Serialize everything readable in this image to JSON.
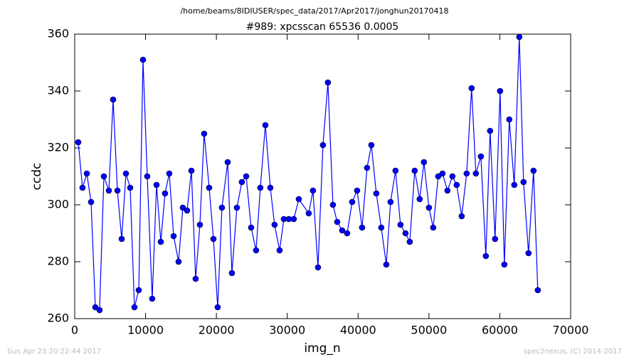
{
  "chart_data": {
    "type": "line",
    "suptitle": "/home/beams/8IDIUSER/spec_data/2017/Apr2017/jonghun20170418",
    "title": "#989: xpcsscan 65536 0.0005",
    "x_label": "img_n",
    "y_label": "ccdc",
    "footer_left": "Sun Apr 23 20:22:44 2017",
    "footer_right": "spec2nexus, (C) 2014-2017",
    "xlim": [
      0,
      70000
    ],
    "xticks": [
      0,
      10000,
      20000,
      30000,
      40000,
      50000,
      60000,
      70000
    ],
    "ylim": [
      260,
      360
    ],
    "yticks": [
      260,
      280,
      300,
      320,
      340,
      360
    ],
    "grid": false,
    "x": [
      500,
      1100,
      1710,
      2310,
      2910,
      3510,
      4120,
      4820,
      5420,
      6030,
      6630,
      7230,
      7830,
      8430,
      9040,
      9640,
      10240,
      10940,
      11550,
      12150,
      12750,
      13350,
      13960,
      14660,
      15260,
      15860,
      16470,
      17070,
      17670,
      18270,
      18980,
      19580,
      20180,
      20780,
      21590,
      22190,
      22890,
      23590,
      24200,
      24900,
      25600,
      26200,
      26910,
      27610,
      28210,
      28920,
      29520,
      30220,
      30920,
      31630,
      33030,
      33630,
      34340,
      35040,
      35740,
      36450,
      37050,
      37750,
      38450,
      39160,
      39860,
      40560,
      41260,
      41870,
      42570,
      43270,
      43980,
      44580,
      45280,
      45980,
      46690,
      47290,
      47990,
      48690,
      49290,
      50000,
      50600,
      51310,
      51910,
      52610,
      53310,
      53910,
      54620,
      55320,
      56020,
      56620,
      57330,
      58030,
      58630,
      59330,
      60040,
      60640,
      61340,
      62040,
      62750,
      63350,
      64050,
      64760,
      65360
    ],
    "series": [
      {
        "name": "ccdc",
        "color": "#0000ff",
        "marker_edge": "#000000",
        "values": [
          322,
          306,
          311,
          301,
          264,
          263,
          310,
          305,
          337,
          305,
          288,
          311,
          306,
          264,
          270,
          351,
          310,
          267,
          307,
          287,
          304,
          311,
          289,
          280,
          299,
          298,
          312,
          274,
          293,
          325,
          306,
          288,
          264,
          299,
          315,
          276,
          299,
          308,
          310,
          292,
          284,
          306,
          328,
          306,
          293,
          284,
          295,
          295,
          295,
          302,
          297,
          305,
          278,
          321,
          343,
          300,
          294,
          291,
          290,
          301,
          305,
          292,
          313,
          321,
          304,
          292,
          279,
          301,
          312,
          293,
          290,
          287,
          312,
          302,
          315,
          299,
          292,
          310,
          311,
          305,
          310,
          307,
          296,
          311,
          341,
          311,
          317,
          282,
          326,
          288,
          340,
          279,
          330,
          307,
          359,
          308,
          283,
          312,
          270
        ]
      }
    ]
  }
}
